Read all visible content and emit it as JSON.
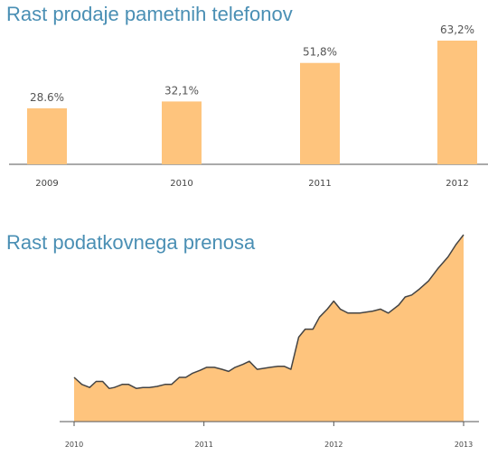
{
  "chart_data": [
    {
      "type": "bar",
      "title": "Rast prodaje pametnih telefonov",
      "categories": [
        "2009",
        "2010",
        "2011",
        "2012"
      ],
      "values": [
        28.6,
        32.1,
        51.8,
        63.2
      ],
      "value_labels": [
        "28.6%",
        "32,1%",
        "51,8%",
        "63,2%"
      ],
      "grid": false,
      "colors": {
        "bar": "#fec47d",
        "axis": "#555555",
        "title": "#4a8fb4"
      }
    },
    {
      "type": "area",
      "title": "Rast podatkovnega prenosa",
      "tick_labels": [
        "2010",
        "2011",
        "2012",
        "2013"
      ],
      "x": [
        2010.0,
        2010.06,
        2010.12,
        2010.17,
        2010.22,
        2010.27,
        2010.31,
        2010.37,
        2010.42,
        2010.48,
        2010.53,
        2010.58,
        2010.64,
        2010.7,
        2010.75,
        2010.81,
        2010.86,
        2010.91,
        2010.97,
        2011.02,
        2011.08,
        2011.14,
        2011.19,
        2011.24,
        2011.3,
        2011.35,
        2011.41,
        2011.46,
        2011.51,
        2011.57,
        2011.62,
        2011.67,
        2011.73,
        2011.78,
        2011.84,
        2011.89,
        2011.95,
        2012.0,
        2012.05,
        2012.11,
        2012.2,
        2012.3,
        2012.36,
        2012.42,
        2012.5,
        2012.55,
        2012.6,
        2012.66,
        2012.73,
        2012.8,
        2012.88,
        2012.94,
        2013.0
      ],
      "values": [
        22,
        18.5,
        17,
        20,
        20,
        16.5,
        17,
        18.5,
        18.5,
        16.5,
        17,
        17,
        17.5,
        18.5,
        18.5,
        22,
        22,
        24,
        25.5,
        27,
        27,
        26,
        25,
        27,
        28.5,
        30,
        26,
        26.5,
        27,
        27.5,
        27.5,
        26,
        42,
        46,
        46,
        52,
        56,
        60,
        56,
        54,
        54,
        55,
        56,
        54,
        58,
        62,
        63,
        66,
        70,
        76,
        82,
        88,
        93
      ],
      "ylim": [
        0,
        100
      ],
      "grid": false,
      "colors": {
        "area": "#fec47d",
        "line": "#444444",
        "axis": "#555555",
        "title": "#4a8fb4"
      }
    }
  ]
}
